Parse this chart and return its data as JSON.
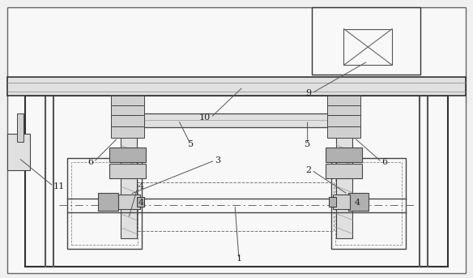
{
  "bg_color": "#f0f0f0",
  "line_color": "#444444",
  "fig_width": 5.84,
  "fig_height": 3.43,
  "dpi": 100
}
